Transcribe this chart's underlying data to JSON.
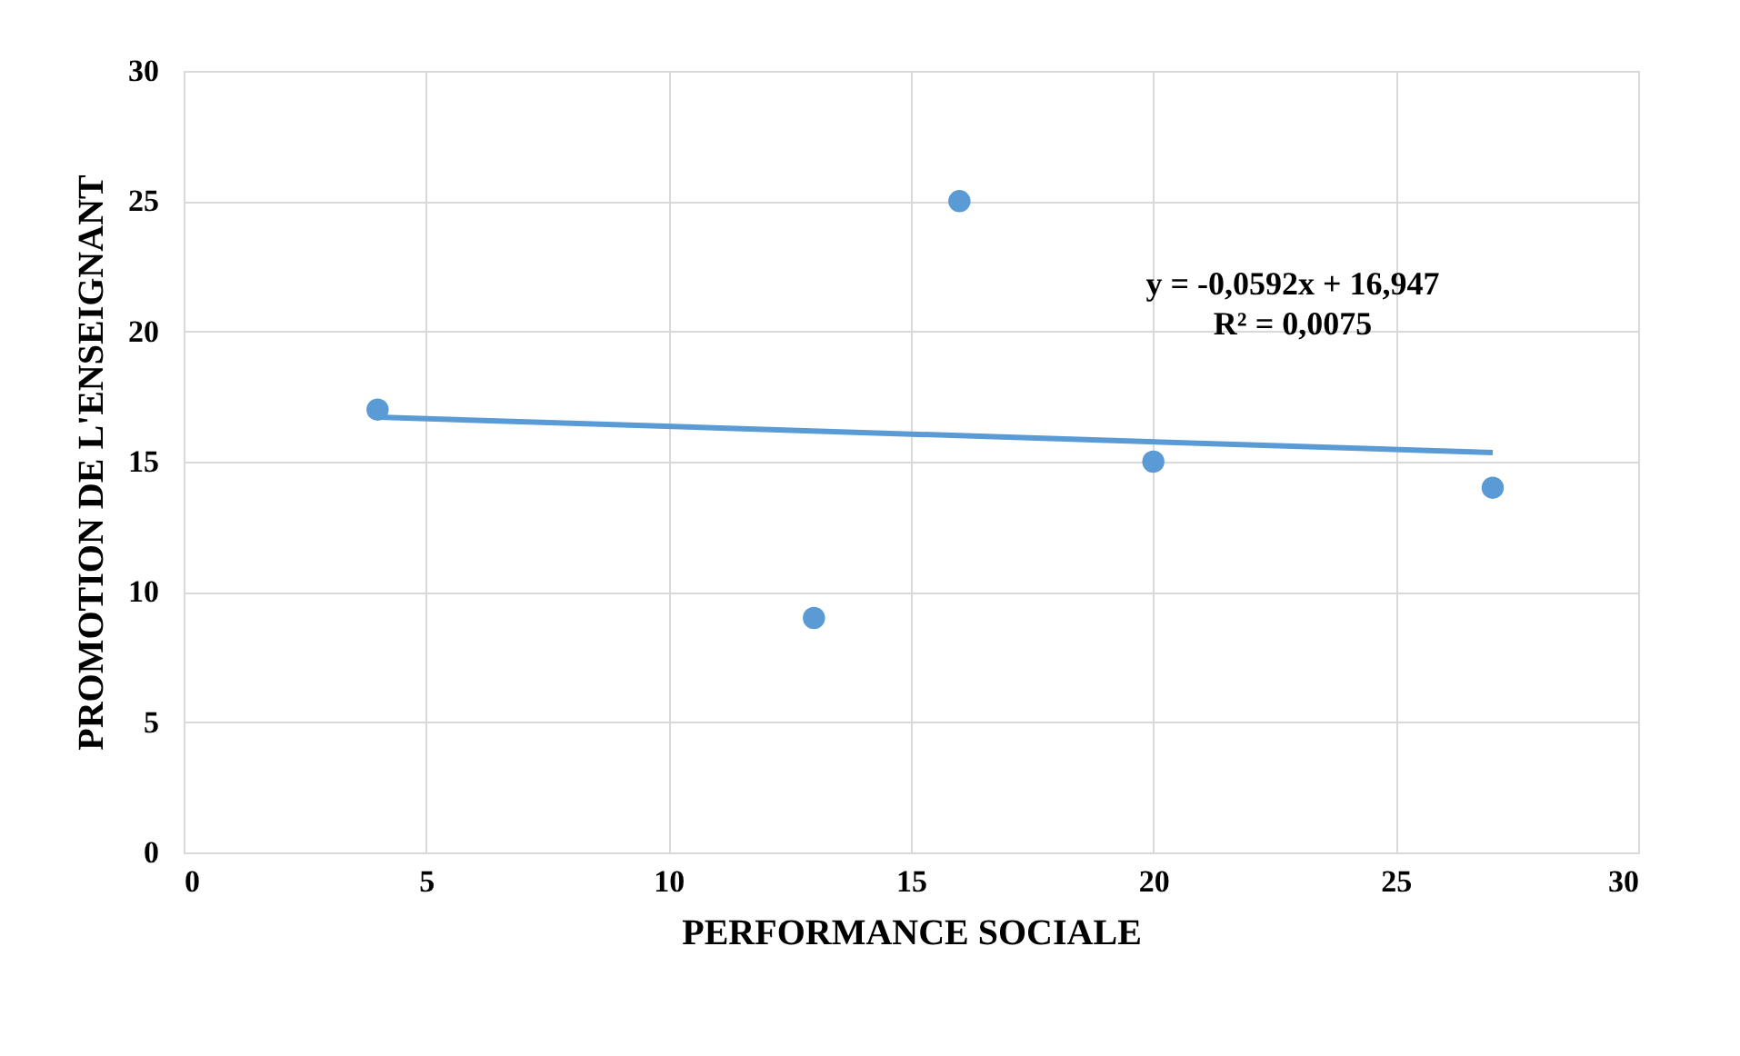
{
  "chart_data": {
    "type": "scatter",
    "xlabel": "PERFORMANCE SOCIALE",
    "ylabel": "PROMOTION DE L'ENSEIGNANT",
    "xlim": [
      0,
      30
    ],
    "xticks": [
      0,
      5,
      10,
      15,
      20,
      25,
      30
    ],
    "ylim": [
      0,
      30
    ],
    "yticks": [
      0,
      5,
      10,
      15,
      20,
      25,
      30
    ],
    "grid": true,
    "series": [
      {
        "color": "#5b9bd5",
        "marker": "circle",
        "x": [
          4,
          13,
          16,
          20,
          27
        ],
        "values": [
          17,
          9,
          25,
          15,
          14
        ]
      },
      {
        "type": "line",
        "color": "#5b9bd5",
        "x": [
          4,
          27
        ],
        "values": [
          16.71,
          15.35
        ]
      }
    ],
    "annotations": [
      "y = -0,0592x + 16,947",
      "R² = 0,0075"
    ]
  }
}
